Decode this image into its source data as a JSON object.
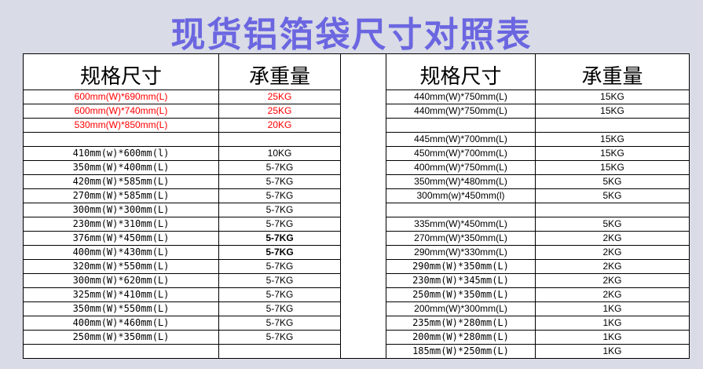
{
  "title": "现货铝箔袋尺寸对照表",
  "colors": {
    "title": "#6b66e0",
    "background": "#d9dbe6",
    "highlight": "#ff0000"
  },
  "headers": {
    "spec": "规格尺寸",
    "load": "承重量"
  },
  "left_rows": [
    {
      "spec": "600mm(W)*690mm(L)",
      "load": "25KG",
      "style": "red"
    },
    {
      "spec": "600mm(W)*740mm(L)",
      "load": "25KG",
      "style": "red"
    },
    {
      "spec": "530mm(W)*850mm(L)",
      "load": "20KG",
      "style": "red"
    },
    {
      "spec": "",
      "load": "",
      "style": ""
    },
    {
      "spec": "410mm(w)*600mm(l)",
      "load": "10KG",
      "style": "mono"
    },
    {
      "spec": "350mm(W)*400mm(L)",
      "load": "5-7KG",
      "style": "mono"
    },
    {
      "spec": "420mm(W)*585mm(L)",
      "load": "5-7KG",
      "style": "mono"
    },
    {
      "spec": "270mm(W)*585mm(L)",
      "load": "5-7KG",
      "style": "mono"
    },
    {
      "spec": "300mm(W)*300mm(L)",
      "load": "5-7KG",
      "style": "mono"
    },
    {
      "spec": "230mm(W)*310mm(L)",
      "load": "5-7KG",
      "style": "mono"
    },
    {
      "spec": "376mm(W)*450mm(L)",
      "load": "5-7KG",
      "style": "mono",
      "load_bold": true
    },
    {
      "spec": "400mm(W)*430mm(L)",
      "load": "5-7KG",
      "style": "mono",
      "load_bold": true
    },
    {
      "spec": "320mm(W)*550mm(L)",
      "load": "5-7KG",
      "style": "mono"
    },
    {
      "spec": "300mm(W)*620mm(L)",
      "load": "5-7KG",
      "style": "mono"
    },
    {
      "spec": "325mm(W)*410mm(L)",
      "load": "5-7KG",
      "style": "mono"
    },
    {
      "spec": "350mm(W)*550mm(L)",
      "load": "5-7KG",
      "style": "mono"
    },
    {
      "spec": "400mm(W)*460mm(L)",
      "load": "5-7KG",
      "style": "mono"
    },
    {
      "spec": "250mm(W)*350mm(L)",
      "load": "5-7KG",
      "style": "mono"
    },
    {
      "spec": "",
      "load": "",
      "style": ""
    }
  ],
  "right_rows": [
    {
      "spec": "440mm(W)*750mm(L)",
      "load": "15KG",
      "style": ""
    },
    {
      "spec": "440mm(W)*750mm(L)",
      "load": "15KG",
      "style": ""
    },
    {
      "spec": "",
      "load": "",
      "style": ""
    },
    {
      "spec": "445mm(W)*700mm(L)",
      "load": "15KG",
      "style": ""
    },
    {
      "spec": "450mm(W)*700mm(L)",
      "load": "15KG",
      "style": ""
    },
    {
      "spec": "400mm(W)*750mm(L)",
      "load": "15KG",
      "style": ""
    },
    {
      "spec": "350mm(W)*480mm(L)",
      "load": "5KG",
      "style": ""
    },
    {
      "spec": "300mm(w)*450mm(l)",
      "load": "5KG",
      "style": ""
    },
    {
      "spec": "",
      "load": "",
      "style": ""
    },
    {
      "spec": "335mm(W)*450mm(L)",
      "load": "5KG",
      "style": ""
    },
    {
      "spec": "270mm(W)*350mm(L)",
      "load": "2KG",
      "style": ""
    },
    {
      "spec": "290mm(W)*330mm(L)",
      "load": "2KG",
      "style": ""
    },
    {
      "spec": "290mm(W)*350mm(L)",
      "load": "2KG",
      "style": "mono"
    },
    {
      "spec": "230mm(W)*345mm(L)",
      "load": "2KG",
      "style": "mono"
    },
    {
      "spec": "250mm(W)*350mm(L)",
      "load": "2KG",
      "style": "mono"
    },
    {
      "spec": "200mm(W)*300mm(L)",
      "load": "1KG",
      "style": ""
    },
    {
      "spec": "235mm(W)*280mm(L)",
      "load": "1KG",
      "style": "mono"
    },
    {
      "spec": "200mm(W)*280mm(L)",
      "load": "1KG",
      "style": "mono"
    },
    {
      "spec": "185mm(W)*250mm(L)",
      "load": "1KG",
      "style": "mono"
    }
  ]
}
